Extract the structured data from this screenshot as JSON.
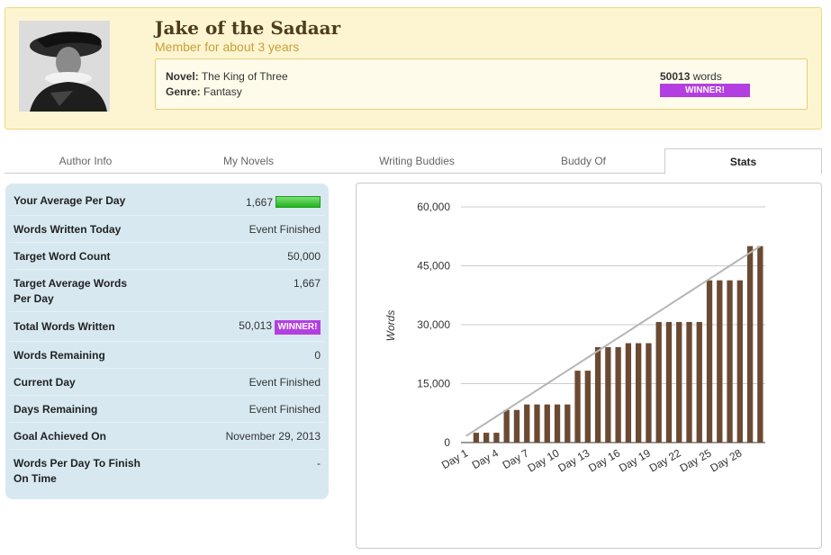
{
  "profile": {
    "name": "Jake of the Sadaar",
    "member_since": "Member for about 3 years",
    "novel_label": "Novel:",
    "novel_title": "The King of Three",
    "genre_label": "Genre:",
    "genre": "Fantasy",
    "word_count": "50013",
    "word_unit": "words",
    "winner_label": "WINNER!"
  },
  "tabs": [
    {
      "label": "Author Info"
    },
    {
      "label": "My Novels"
    },
    {
      "label": "Writing Buddies"
    },
    {
      "label": "Buddy Of"
    },
    {
      "label": "Stats"
    }
  ],
  "stats": [
    {
      "label": "Your Average Per Day",
      "value": "1,667"
    },
    {
      "label": "Words Written Today",
      "value": "Event Finished"
    },
    {
      "label": "Target Word Count",
      "value": "50,000"
    },
    {
      "label": "Target Average Words Per Day",
      "value": "1,667"
    },
    {
      "label": "Total Words Written",
      "value": "50,013",
      "badge": "WINNER!"
    },
    {
      "label": "Words Remaining",
      "value": "0"
    },
    {
      "label": "Current Day",
      "value": "Event Finished"
    },
    {
      "label": "Days Remaining",
      "value": "Event Finished"
    },
    {
      "label": "Goal Achieved On",
      "value": "November 29, 2013"
    },
    {
      "label": "Words Per Day To Finish On Time",
      "value": "-"
    }
  ],
  "colors": {
    "bar": "#6b4a33",
    "target_line": "#b5b5b5",
    "winner": "#b43fe0",
    "progress": "#21b41c"
  },
  "chart_data": {
    "type": "bar",
    "ylabel": "Words",
    "ylim": [
      0,
      60000
    ],
    "yticks": [
      "0",
      "15,000",
      "30,000",
      "45,000",
      "60,000"
    ],
    "ytick_values": [
      0,
      15000,
      30000,
      45000,
      60000
    ],
    "categories": [
      "Day 1",
      "Day 2",
      "Day 3",
      "Day 4",
      "Day 5",
      "Day 6",
      "Day 7",
      "Day 8",
      "Day 9",
      "Day 10",
      "Day 11",
      "Day 12",
      "Day 13",
      "Day 14",
      "Day 15",
      "Day 16",
      "Day 17",
      "Day 18",
      "Day 19",
      "Day 20",
      "Day 21",
      "Day 22",
      "Day 23",
      "Day 24",
      "Day 25",
      "Day 26",
      "Day 27",
      "Day 28",
      "Day 29",
      "Day 30"
    ],
    "xtick_labels": [
      "Day 1",
      "Day 4",
      "Day 7",
      "Day 10",
      "Day 13",
      "Day 16",
      "Day 19",
      "Day 22",
      "Day 25",
      "Day 28"
    ],
    "series": [
      {
        "values": [
          0,
          2500,
          2500,
          2500,
          8300,
          8300,
          9700,
          9700,
          9700,
          9700,
          9700,
          18300,
          18300,
          24300,
          24300,
          24300,
          25300,
          25300,
          25300,
          30700,
          30700,
          30700,
          30700,
          30700,
          41300,
          41300,
          41300,
          41300,
          50013,
          50013
        ]
      },
      {
        "values": [
          1667,
          3333,
          5000,
          6667,
          8333,
          10000,
          11667,
          13333,
          15000,
          16667,
          18333,
          20000,
          21667,
          23333,
          25000,
          26667,
          28333,
          30000,
          31667,
          33333,
          35000,
          36667,
          38333,
          40000,
          41667,
          43333,
          45000,
          46667,
          48333,
          50000
        ]
      }
    ],
    "grid": true
  }
}
